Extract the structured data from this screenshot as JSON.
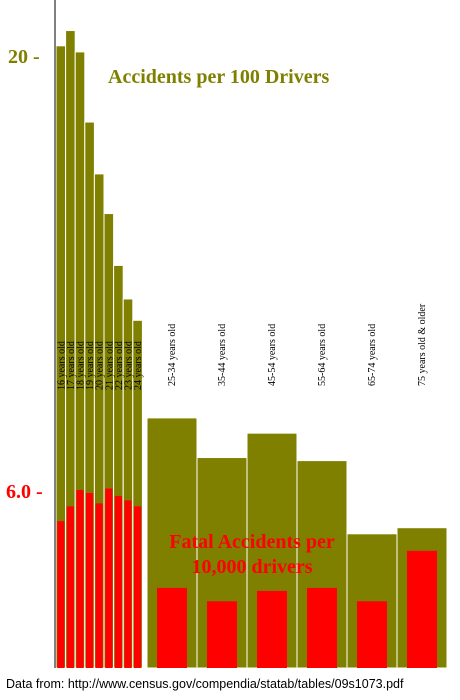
{
  "chart_data": {
    "type": "bar",
    "title": "",
    "xlabel": "",
    "ylabel": "",
    "tick_labels": {
      "accidents": "20 -",
      "fatal": "6.0 -"
    },
    "categories": [
      "16 years old",
      "17 years old",
      "18 years old",
      "19 years old",
      "20 years old",
      "21 years old",
      "22 years old",
      "23 years old",
      "24 years old",
      "25-34 years old",
      "35-44 years old",
      "45-54 years old",
      "55-64 years old",
      "65-74 years old",
      "75 years old & older"
    ],
    "series": [
      {
        "name": "Accidents per 100 Drivers",
        "color": "#808000",
        "tick_value": 20,
        "values": [
          20.4,
          20.9,
          20.2,
          17.9,
          16.2,
          14.9,
          13.2,
          12.1,
          11.4,
          8.2,
          6.9,
          7.7,
          6.8,
          4.4,
          4.6
        ]
      },
      {
        "name": "Fatal Accidents per 10,000 drivers",
        "label_lines": [
          "Fatal Accidents per",
          "10,000 drivers"
        ],
        "color": "#ff0000",
        "tick_value": 6.0,
        "values": [
          4.95,
          5.45,
          6.0,
          5.9,
          5.55,
          6.05,
          5.8,
          5.65,
          5.45,
          2.7,
          2.25,
          2.6,
          2.7,
          2.25,
          3.95
        ]
      }
    ],
    "source_note": "Data from: http://www.census.gov/compendia/statab/tables/09s1073.pdf"
  }
}
